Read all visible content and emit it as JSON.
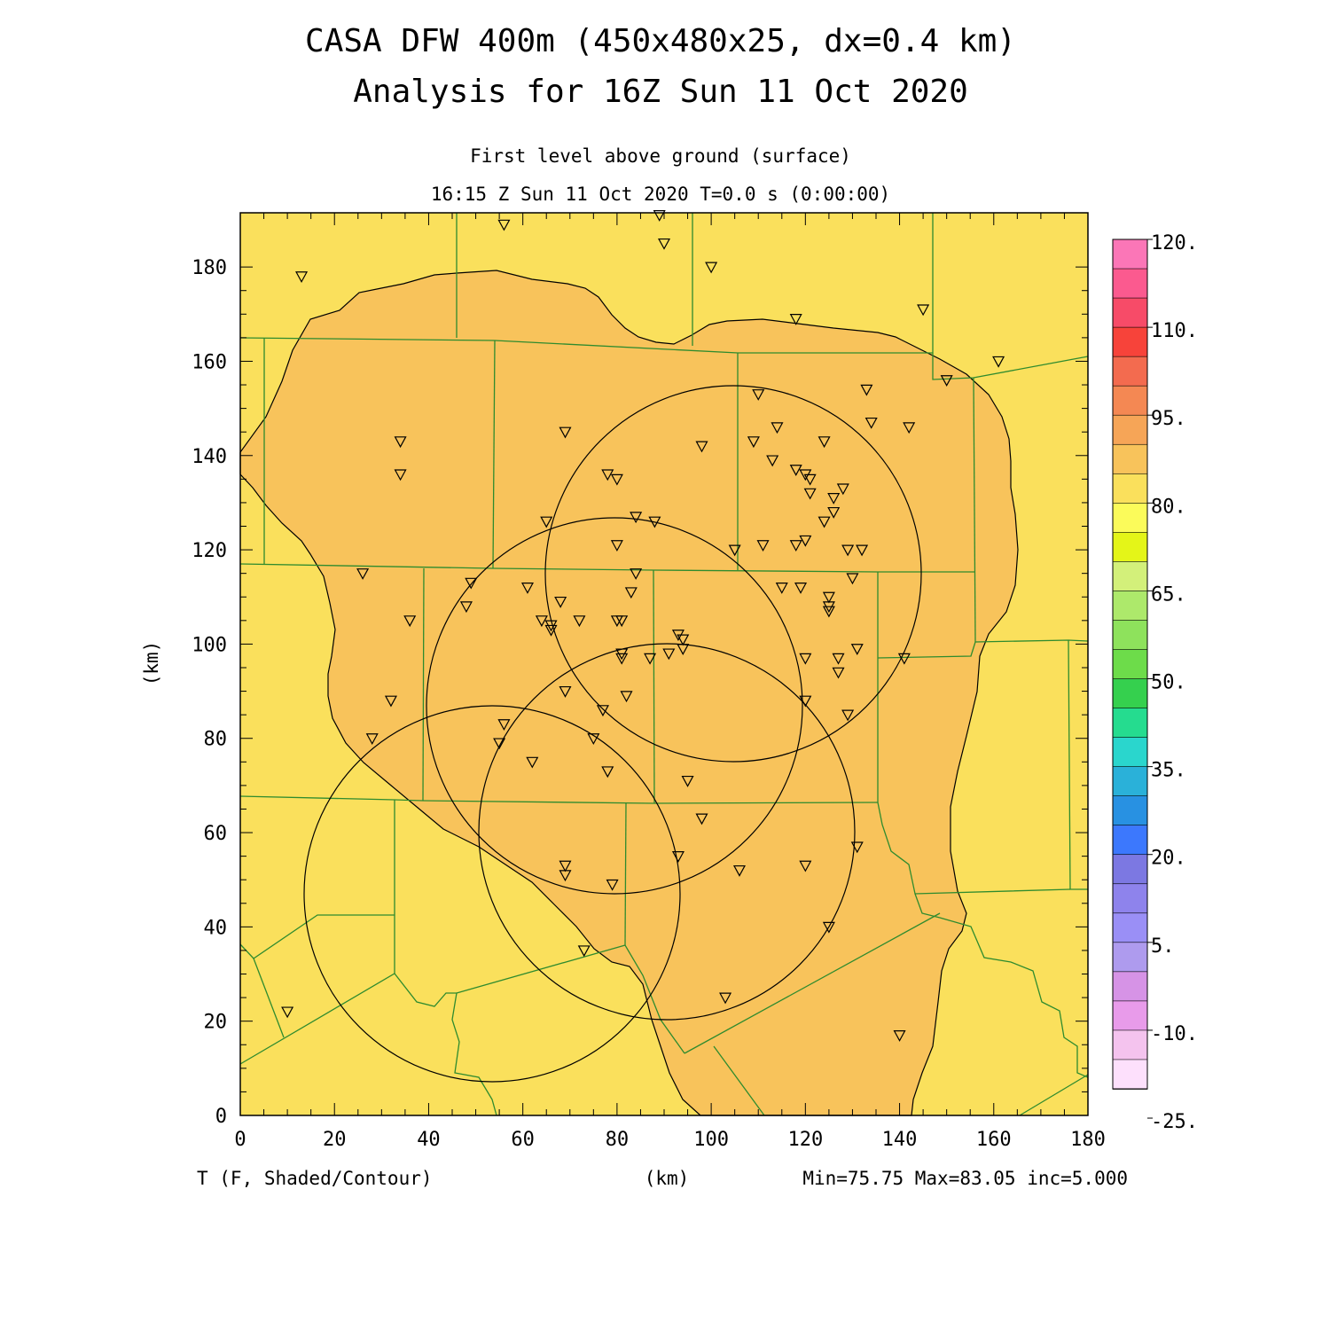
{
  "title_line1": "CASA DFW 400m (450x480x25, dx=0.4 km)",
  "title_line2": "Analysis for 16Z Sun 11 Oct 2020",
  "level_label": "First level above ground (surface)",
  "time_label": "16:15 Z Sun 11 Oct 2020    T=0.0 s (0:00:00)",
  "y_axis_label": "(km)",
  "x_axis_label": "(km)",
  "field_label": "T (F, Shaded/Contour)",
  "stats_label": "Min=75.75 Max=83.05 inc=5.000",
  "x_ticks": [
    "0",
    "20",
    "40",
    "60",
    "80",
    "100",
    "120",
    "140",
    "160",
    "180"
  ],
  "y_ticks": [
    "0",
    "20",
    "40",
    "60",
    "80",
    "100",
    "120",
    "140",
    "160",
    "180"
  ],
  "colorbar": {
    "labels": [
      "120.",
      "110.",
      "95.",
      "80.",
      "65.",
      "50.",
      "35.",
      "20.",
      "5.",
      "-10.",
      "-25."
    ],
    "colors": [
      "#fb76b7",
      "#fb5a8f",
      "#f74b68",
      "#f7433a",
      "#f36b4f",
      "#f48853",
      "#f6a557",
      "#f8c35b",
      "#fae05c",
      "#fbfb5a",
      "#e4f518",
      "#d3f07a",
      "#ade96b",
      "#8ee25c",
      "#6ddc4a",
      "#35d04e",
      "#25dc8f",
      "#2ad6cd",
      "#2ab1d9",
      "#2891e2",
      "#3c78fd",
      "#7c78e2",
      "#8e83ec",
      "#9a8ff6",
      "#ae9bee",
      "#d693e6",
      "#e89bea",
      "#f4c3ee",
      "#fde0fc"
    ]
  },
  "map": {
    "warm_color": "#f8c35b",
    "base_color": "#fae05c",
    "boundary_color": "#2e8b2e"
  },
  "stations": [
    [
      13,
      178
    ],
    [
      34,
      143
    ],
    [
      34,
      136
    ],
    [
      56,
      189
    ],
    [
      69,
      145
    ],
    [
      89,
      191
    ],
    [
      90,
      185
    ],
    [
      100,
      180
    ],
    [
      118,
      169
    ],
    [
      145,
      171
    ],
    [
      161,
      160
    ],
    [
      150,
      156
    ],
    [
      133,
      154
    ],
    [
      110,
      153
    ],
    [
      134,
      147
    ],
    [
      142,
      146
    ],
    [
      114,
      146
    ],
    [
      109,
      143
    ],
    [
      124,
      143
    ],
    [
      98,
      142
    ],
    [
      78,
      136
    ],
    [
      80,
      135
    ],
    [
      113,
      139
    ],
    [
      118,
      137
    ],
    [
      120,
      136
    ],
    [
      121,
      135
    ],
    [
      128,
      133
    ],
    [
      121,
      132
    ],
    [
      126,
      131
    ],
    [
      126,
      128
    ],
    [
      65,
      126
    ],
    [
      84,
      127
    ],
    [
      88,
      126
    ],
    [
      124,
      126
    ],
    [
      120,
      122
    ],
    [
      118,
      121
    ],
    [
      111,
      121
    ],
    [
      105,
      120
    ],
    [
      129,
      120
    ],
    [
      132,
      120
    ],
    [
      80,
      121
    ],
    [
      26,
      115
    ],
    [
      49,
      113
    ],
    [
      61,
      112
    ],
    [
      84,
      115
    ],
    [
      130,
      114
    ],
    [
      115,
      112
    ],
    [
      119,
      112
    ],
    [
      83,
      111
    ],
    [
      125,
      110
    ],
    [
      68,
      109
    ],
    [
      125,
      108
    ],
    [
      125,
      107
    ],
    [
      48,
      108
    ],
    [
      36,
      105
    ],
    [
      64,
      105
    ],
    [
      66,
      104
    ],
    [
      66,
      103
    ],
    [
      72,
      105
    ],
    [
      80,
      105
    ],
    [
      81,
      105
    ],
    [
      93,
      102
    ],
    [
      94,
      101
    ],
    [
      94,
      99
    ],
    [
      91,
      98
    ],
    [
      81,
      98
    ],
    [
      81,
      97
    ],
    [
      87,
      97
    ],
    [
      120,
      97
    ],
    [
      127,
      97
    ],
    [
      141,
      97
    ],
    [
      131,
      99
    ],
    [
      127,
      94
    ],
    [
      69,
      90
    ],
    [
      32,
      88
    ],
    [
      82,
      89
    ],
    [
      120,
      88
    ],
    [
      77,
      86
    ],
    [
      56,
      83
    ],
    [
      129,
      85
    ],
    [
      28,
      80
    ],
    [
      75,
      80
    ],
    [
      55,
      79
    ],
    [
      62,
      75
    ],
    [
      78,
      73
    ],
    [
      95,
      71
    ],
    [
      98,
      63
    ],
    [
      93,
      55
    ],
    [
      131,
      57
    ],
    [
      69,
      53
    ],
    [
      69,
      51
    ],
    [
      106,
      52
    ],
    [
      120,
      53
    ],
    [
      79,
      49
    ],
    [
      125,
      40
    ],
    [
      73,
      35
    ],
    [
      10,
      22
    ],
    [
      103,
      25
    ],
    [
      140,
      17
    ]
  ]
}
